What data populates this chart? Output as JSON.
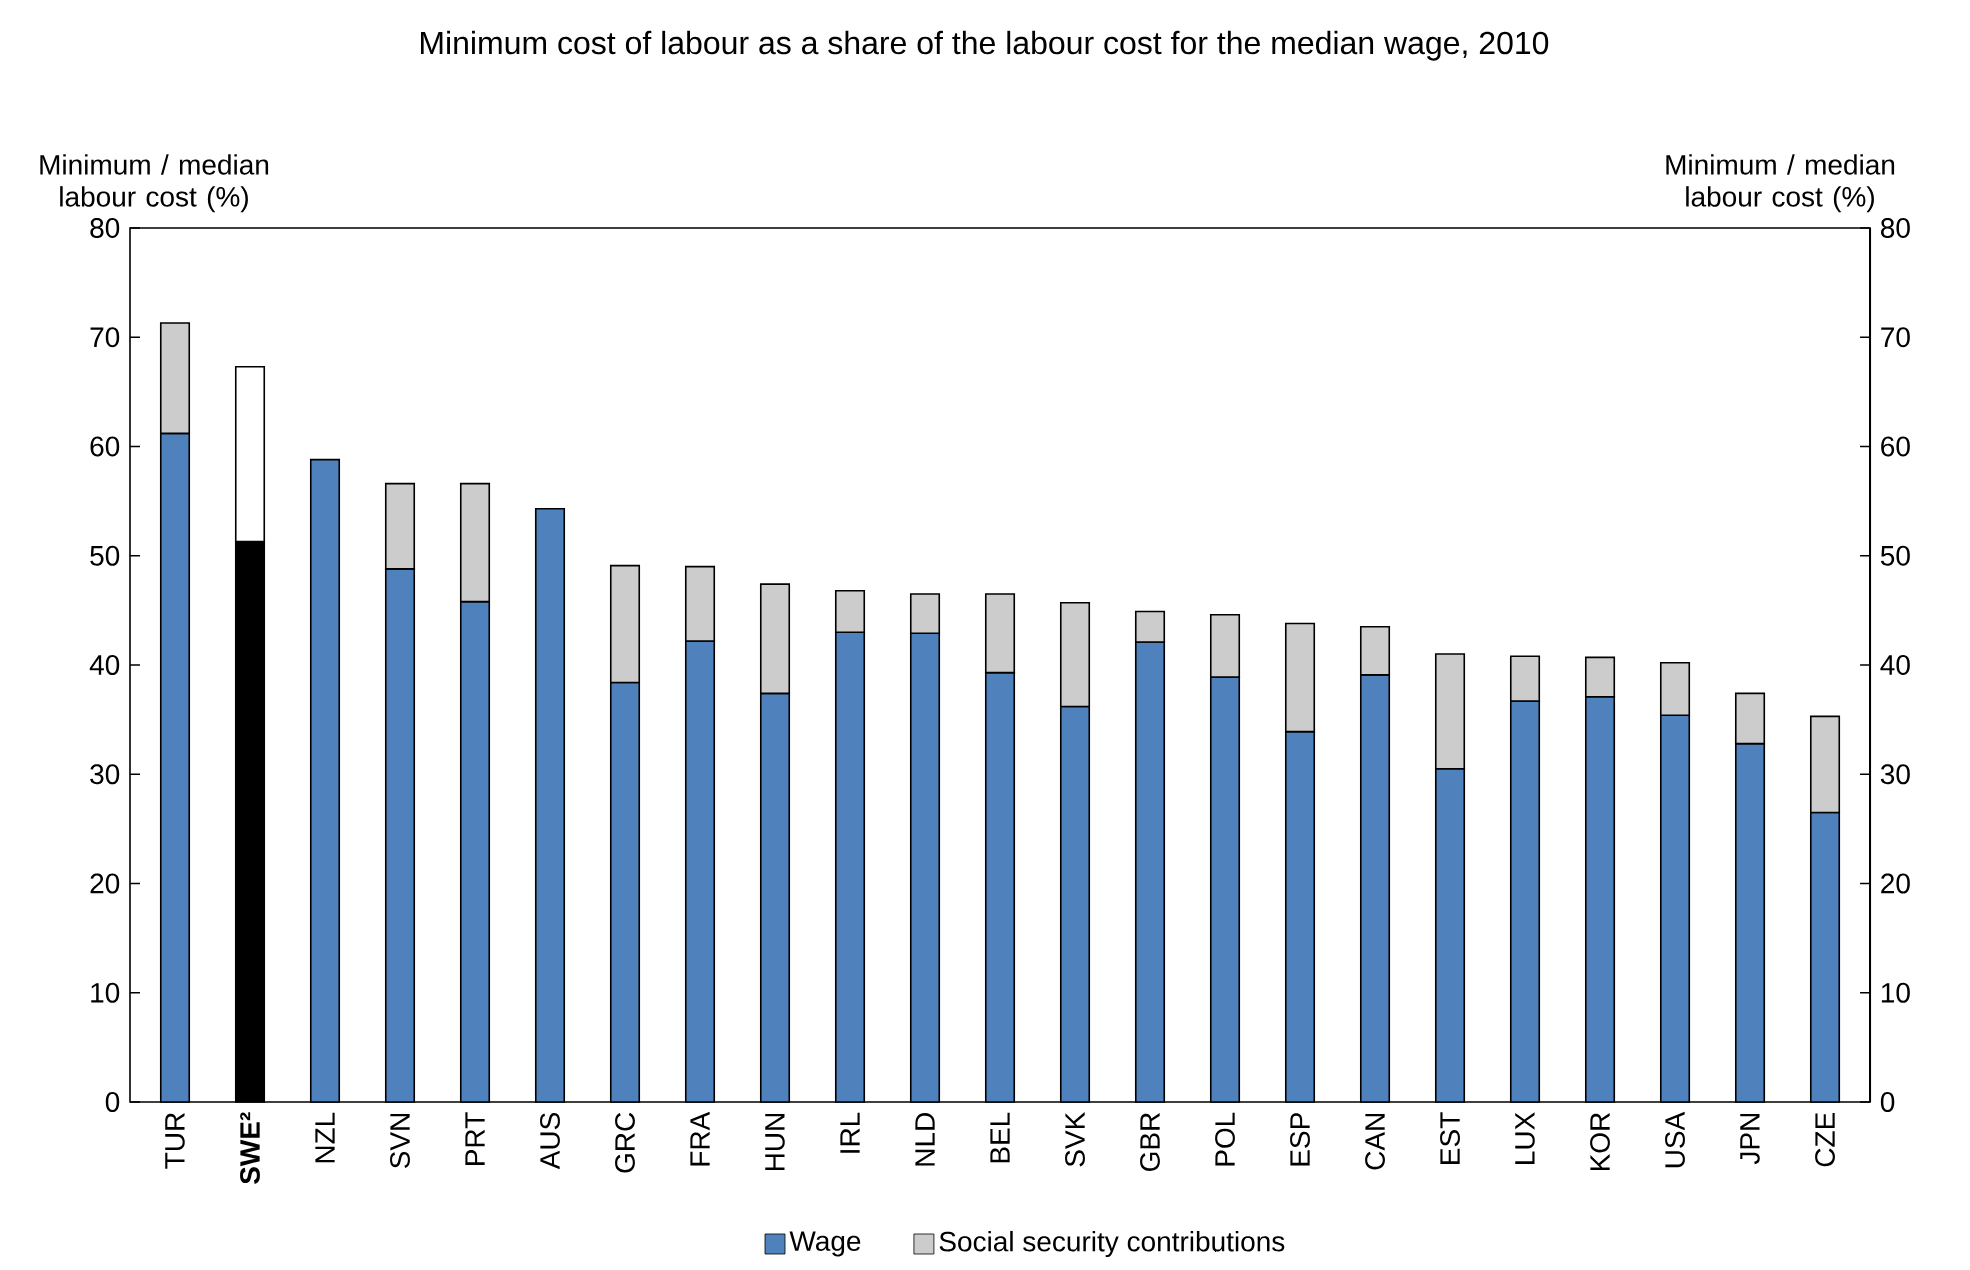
{
  "chart_data": {
    "type": "bar",
    "stacked": true,
    "title": "Minimum cost of labour as a share of the labour cost for the median wage, 2010",
    "annotations": [
      "Minimum / median labour cost (%)",
      "Minimum / median labour cost (%)"
    ],
    "categories": [
      "TUR",
      "**SWE²**",
      "NZL",
      "SVN",
      "PRT",
      "AUS",
      "GRC",
      "FRA",
      "HUN",
      "IRL",
      "NLD",
      "BEL",
      "SVK",
      "GBR",
      "POL",
      "ESP",
      "CAN",
      "EST",
      "LUX",
      "KOR",
      "USA",
      "JPN",
      "CZE"
    ],
    "series": [
      {
        "name": "Wage",
        "color": "#4f81bd",
        "colors": [
          "#4f81bd",
          "#000000",
          "#4f81bd",
          "#4f81bd",
          "#4f81bd",
          "#4f81bd",
          "#4f81bd",
          "#4f81bd",
          "#4f81bd",
          "#4f81bd",
          "#4f81bd",
          "#4f81bd",
          "#4f81bd",
          "#4f81bd",
          "#4f81bd",
          "#4f81bd",
          "#4f81bd",
          "#4f81bd",
          "#4f81bd",
          "#4f81bd",
          "#4f81bd",
          "#4f81bd",
          "#4f81bd"
        ],
        "values": [
          61.2,
          51.3,
          58.8,
          48.8,
          45.8,
          54.3,
          38.4,
          42.2,
          37.4,
          43.0,
          42.9,
          39.3,
          36.2,
          42.1,
          38.9,
          33.9,
          39.1,
          30.5,
          36.7,
          37.1,
          35.4,
          32.8,
          26.5
        ]
      },
      {
        "name": "Social security contributions",
        "color": "#cccccc",
        "colors": [
          "#cccccc",
          "#ffffff",
          "#cccccc",
          "#cccccc",
          "#cccccc",
          "#cccccc",
          "#cccccc",
          "#cccccc",
          "#cccccc",
          "#cccccc",
          "#cccccc",
          "#cccccc",
          "#cccccc",
          "#cccccc",
          "#cccccc",
          "#cccccc",
          "#cccccc",
          "#cccccc",
          "#cccccc",
          "#cccccc",
          "#cccccc",
          "#cccccc",
          "#cccccc"
        ],
        "values": [
          10.1,
          16.0,
          0,
          7.8,
          10.8,
          0,
          10.7,
          6.8,
          10.0,
          3.8,
          3.6,
          7.2,
          9.5,
          2.8,
          5.7,
          9.9,
          4.4,
          10.5,
          4.1,
          3.6,
          4.8,
          4.6,
          8.8
        ]
      }
    ],
    "ylim": [
      0,
      80
    ],
    "yticks": [
      0,
      10,
      20,
      30,
      40,
      50,
      60,
      70,
      80
    ],
    "y2lim": [
      0,
      80
    ],
    "y2ticks": [
      0,
      10,
      20,
      30,
      40,
      50,
      60,
      70,
      80
    ],
    "legend": "bottom"
  }
}
